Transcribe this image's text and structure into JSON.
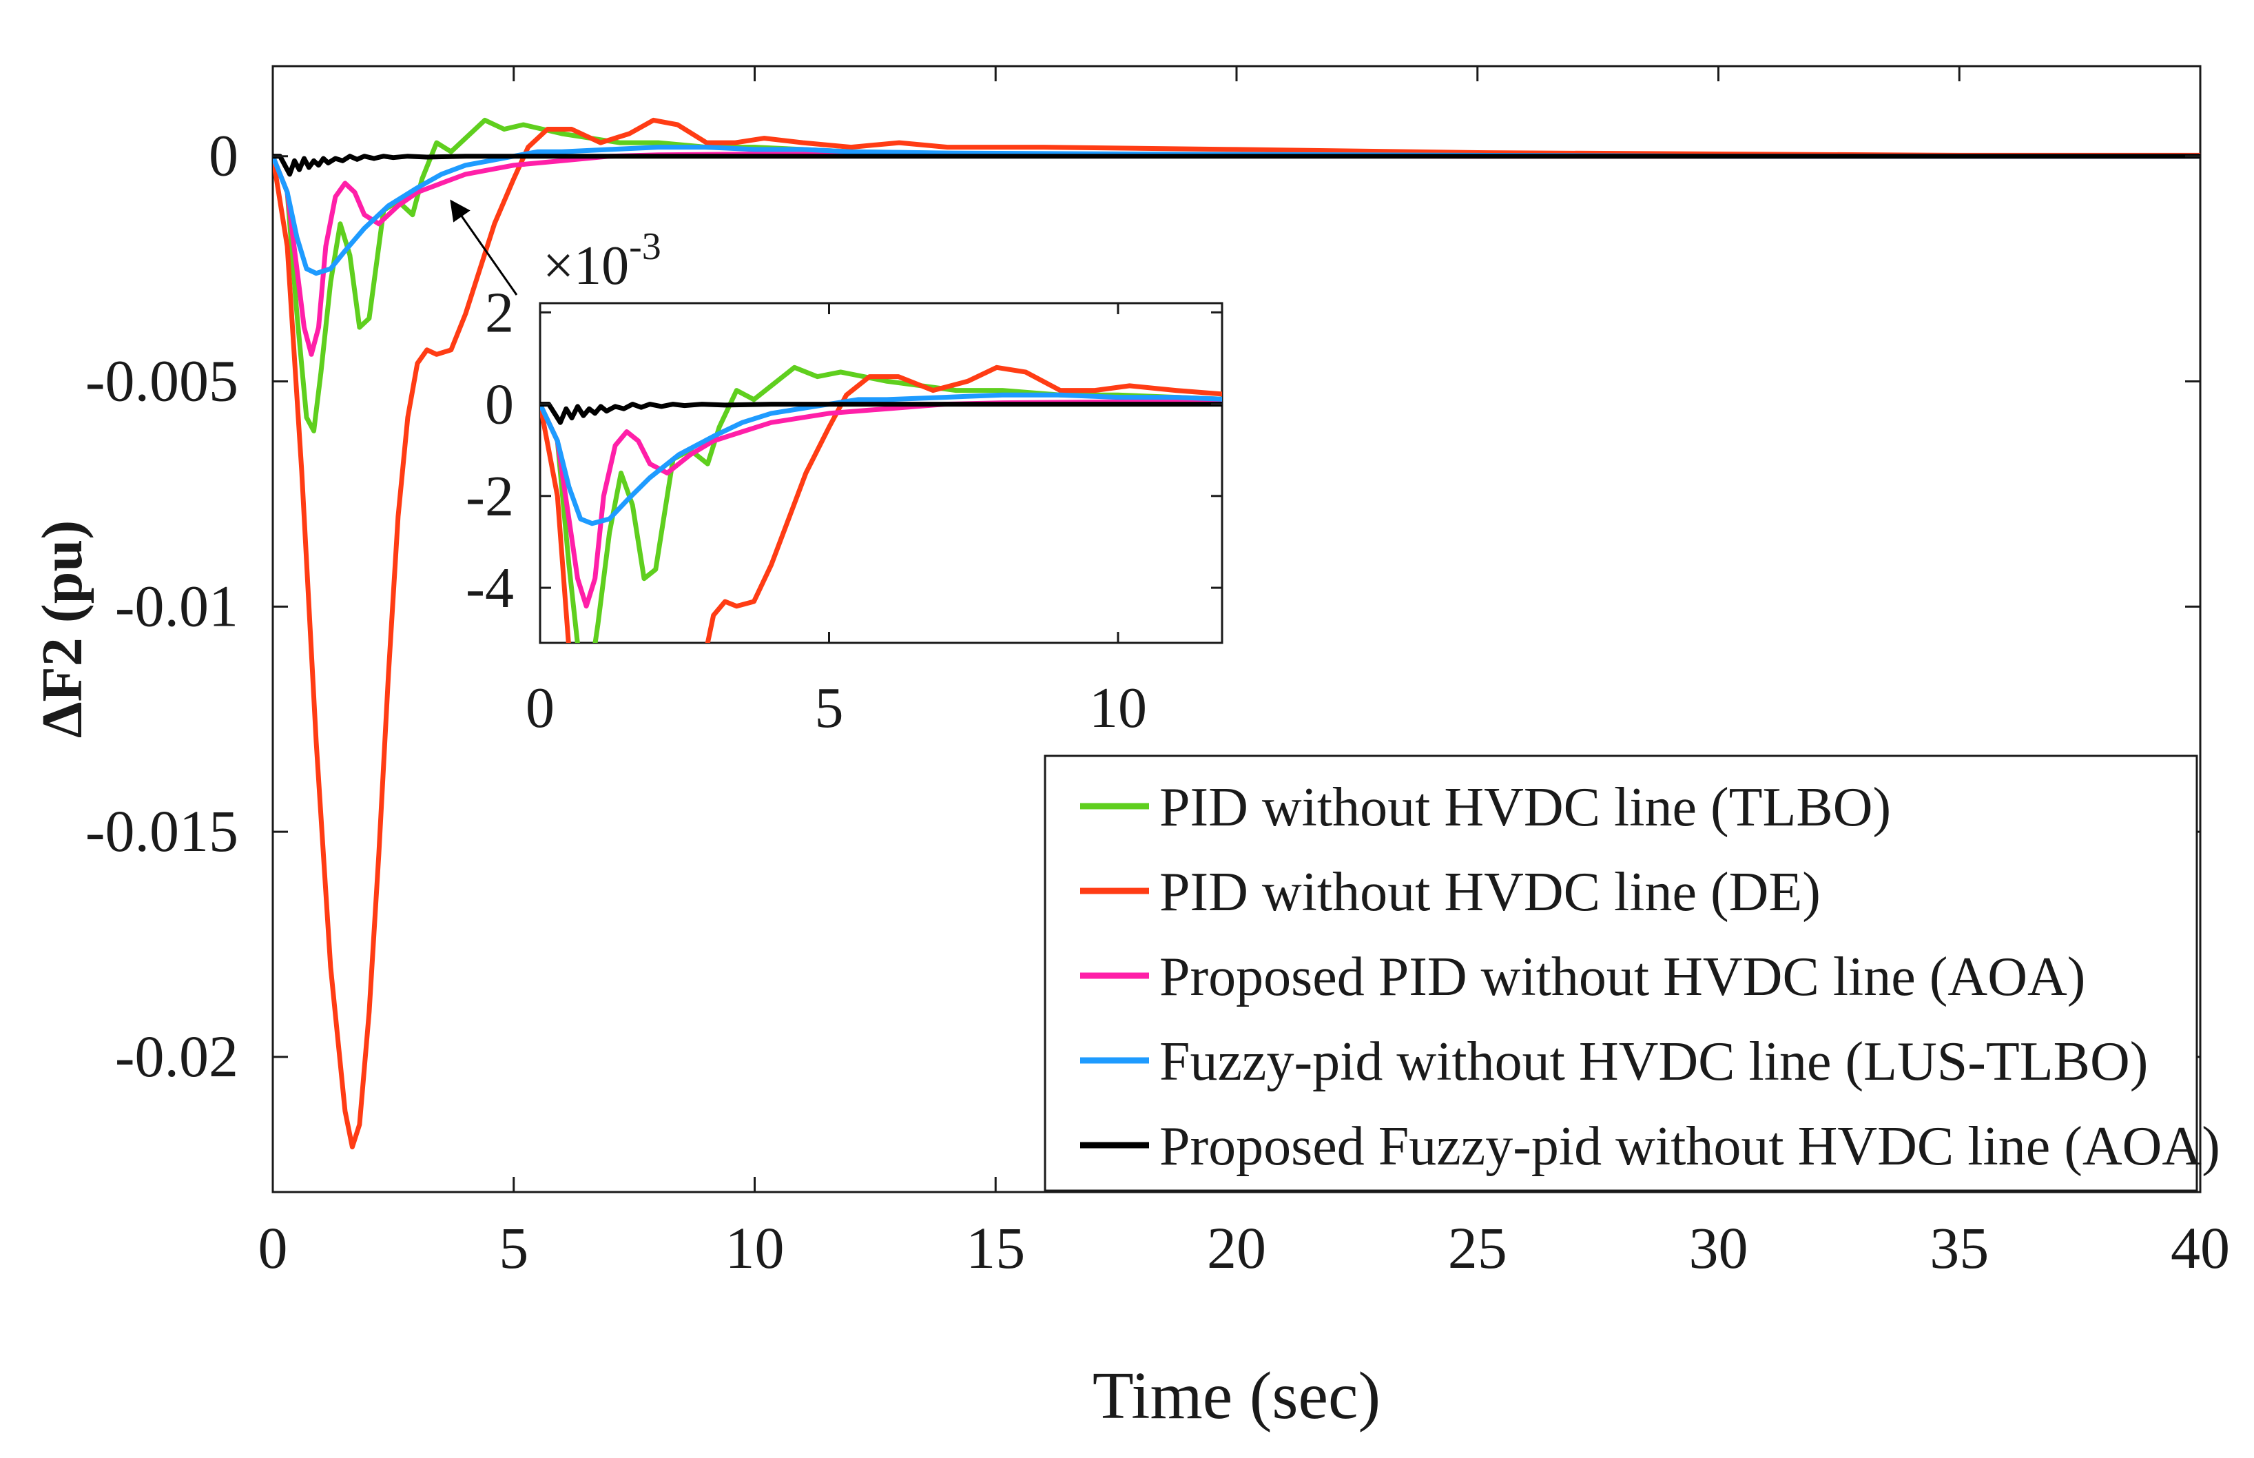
{
  "chart_data": [
    {
      "type": "line",
      "xlabel": "Time (sec)",
      "ylabel": "ΔF2 (pu)",
      "xlim": [
        0,
        40
      ],
      "ylim": [
        -0.023,
        0.002
      ],
      "xticks": [
        0,
        5,
        10,
        15,
        20,
        25,
        30,
        35,
        40
      ],
      "xtick_labels": [
        "0",
        "5",
        "10",
        "15",
        "20",
        "25",
        "30",
        "35",
        "40"
      ],
      "yticks": [
        0,
        -0.005,
        -0.01,
        -0.015,
        -0.02
      ],
      "ytick_labels": [
        "0",
        "-0.005",
        "-0.01",
        "-0.015",
        "-0.02"
      ],
      "grid": false,
      "legend_position": "bottom-right",
      "series": [
        {
          "name": "PID without HVDC line (TLBO)",
          "color": "#5fcf1e",
          "x": [
            0,
            0.3,
            0.5,
            0.7,
            0.85,
            1.0,
            1.2,
            1.4,
            1.6,
            1.8,
            2.0,
            2.3,
            2.6,
            2.9,
            3.1,
            3.4,
            3.7,
            4.0,
            4.4,
            4.8,
            5.2,
            5.6,
            6.0,
            6.6,
            7.2,
            8.0,
            9.0,
            10.0,
            12.0,
            15.0,
            20.0,
            25.0,
            30.0,
            35.0,
            40.0
          ],
          "y": [
            0,
            -0.0008,
            -0.0035,
            -0.0058,
            -0.0061,
            -0.0048,
            -0.0028,
            -0.0015,
            -0.0022,
            -0.0038,
            -0.0036,
            -0.0012,
            -0.001,
            -0.0013,
            -0.0005,
            0.0003,
            0.0001,
            0.0004,
            0.0008,
            0.0006,
            0.0007,
            0.0006,
            0.0005,
            0.0004,
            0.0003,
            0.0003,
            0.0002,
            0.0002,
            0.0001,
            5e-05,
            2e-05,
            0,
            0,
            0,
            0
          ]
        },
        {
          "name": "PID without HVDC line (DE)",
          "color": "#ff3c14",
          "x": [
            0,
            0.3,
            0.6,
            0.9,
            1.2,
            1.5,
            1.65,
            1.8,
            2.0,
            2.2,
            2.4,
            2.6,
            2.8,
            3.0,
            3.2,
            3.4,
            3.7,
            4.0,
            4.3,
            4.6,
            5.0,
            5.3,
            5.7,
            6.2,
            6.8,
            7.4,
            7.9,
            8.4,
            9.0,
            9.6,
            10.2,
            11.0,
            12.0,
            13.0,
            14.0,
            16.0,
            20.0,
            25.0,
            30.0,
            35.0,
            40.0
          ],
          "y": [
            0,
            -0.002,
            -0.007,
            -0.013,
            -0.018,
            -0.0212,
            -0.022,
            -0.0215,
            -0.019,
            -0.0155,
            -0.0115,
            -0.008,
            -0.0058,
            -0.0046,
            -0.0043,
            -0.0044,
            -0.0043,
            -0.0035,
            -0.0025,
            -0.0015,
            -0.0005,
            0.0002,
            0.0006,
            0.0006,
            0.0003,
            0.0005,
            0.0008,
            0.0007,
            0.0003,
            0.0003,
            0.0004,
            0.0003,
            0.0002,
            0.0003,
            0.0002,
            0.0002,
            0.00015,
            8e-05,
            5e-05,
            2e-05,
            2e-05
          ]
        },
        {
          "name": "Proposed PID without HVDC line (AOA)",
          "color": "#ff1fa8",
          "x": [
            0,
            0.3,
            0.5,
            0.65,
            0.8,
            0.95,
            1.1,
            1.3,
            1.5,
            1.7,
            1.9,
            2.2,
            2.6,
            3.0,
            3.5,
            4.0,
            4.5,
            5.0,
            6.0,
            7.0,
            8.0,
            10.0,
            15.0,
            20.0,
            25.0,
            30.0,
            35.0,
            40.0
          ],
          "y": [
            0,
            -0.0008,
            -0.0025,
            -0.0038,
            -0.0044,
            -0.0038,
            -0.002,
            -0.0009,
            -0.0006,
            -0.0008,
            -0.0013,
            -0.0015,
            -0.0011,
            -0.0008,
            -0.0006,
            -0.0004,
            -0.0003,
            -0.0002,
            -0.0001,
            0,
            3e-05,
            5e-05,
            3e-05,
            1e-05,
            0,
            0,
            0,
            0
          ]
        },
        {
          "name": "Fuzzy-pid without HVDC line (LUS-TLBO)",
          "color": "#1e9bff",
          "x": [
            0,
            0.3,
            0.5,
            0.7,
            0.9,
            1.2,
            1.5,
            1.9,
            2.4,
            3.0,
            3.5,
            4.0,
            4.5,
            5.0,
            5.5,
            6.0,
            7.0,
            8.0,
            9.0,
            10.0,
            11.0,
            12.0,
            14.0,
            18.0,
            25.0,
            30.0,
            35.0,
            40.0
          ],
          "y": [
            0,
            -0.0008,
            -0.0018,
            -0.0025,
            -0.0026,
            -0.0025,
            -0.0021,
            -0.0016,
            -0.0011,
            -0.0007,
            -0.0004,
            -0.0002,
            -0.0001,
            0,
            0.0001,
            0.0001,
            0.00015,
            0.0002,
            0.0002,
            0.00015,
            0.00015,
            0.0001,
            7e-05,
            5e-05,
            2e-05,
            0,
            0,
            0
          ]
        },
        {
          "name": "Proposed Fuzzy-pid without HVDC line (AOA)",
          "color": "#000000",
          "x": [
            0,
            0.15,
            0.25,
            0.35,
            0.45,
            0.55,
            0.65,
            0.75,
            0.85,
            0.95,
            1.05,
            1.15,
            1.3,
            1.45,
            1.6,
            1.75,
            1.9,
            2.1,
            2.3,
            2.5,
            2.8,
            3.2,
            4.0,
            6.0,
            10.0,
            20.0,
            30.0,
            40.0
          ],
          "y": [
            0,
            0,
            -0.0002,
            -0.0004,
            -0.0001,
            -0.0003,
            -5e-05,
            -0.00025,
            -0.0001,
            -0.0002,
            -5e-05,
            -0.00015,
            -5e-05,
            -0.0001,
            0,
            -7e-05,
            0,
            -5e-05,
            0,
            -3e-05,
            0,
            -2e-05,
            0,
            0,
            0,
            0,
            0,
            0
          ]
        }
      ]
    },
    {
      "type": "line",
      "xlim": [
        0,
        11.8
      ],
      "ylim": [
        -5.2,
        2.2
      ],
      "y_multiplier": "×10-3",
      "xticks": [
        0,
        5,
        10
      ],
      "xtick_labels": [
        "0",
        "5",
        "10"
      ],
      "yticks": [
        2,
        0,
        -2,
        -4
      ],
      "ytick_labels": [
        "2",
        "0",
        "-2",
        "-4"
      ],
      "grid": false,
      "annotation_arrow": true
    }
  ]
}
